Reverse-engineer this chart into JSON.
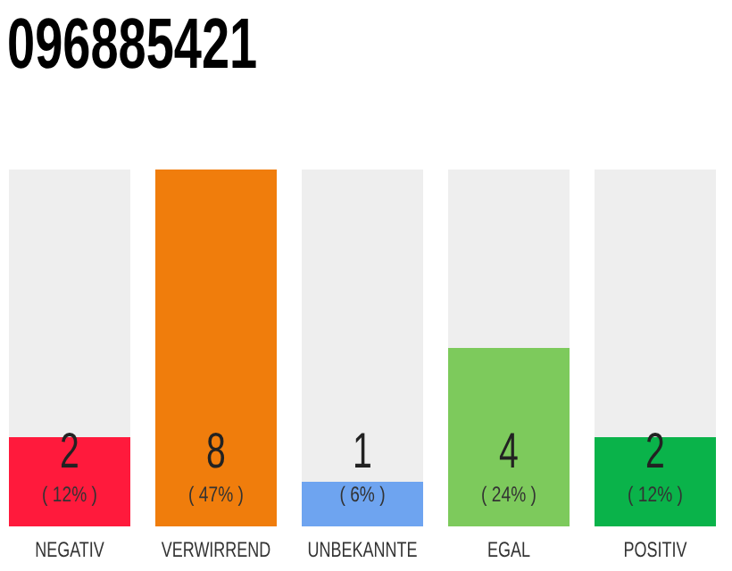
{
  "chart_data": {
    "type": "bar",
    "title": "096885421",
    "categories": [
      "NEGATIV",
      "VERWIRREND",
      "UNBEKANNTE",
      "EGAL",
      "POSITIV"
    ],
    "values": [
      2,
      8,
      1,
      4,
      2
    ],
    "colors": [
      "#ff1a3c",
      "#f07d0c",
      "#6ea4f0",
      "#7dca5c",
      "#0ab34a"
    ],
    "ylim": [
      0,
      8
    ],
    "data_labels": true,
    "tick_labels": "x",
    "annotations": [
      "( 12% )",
      "( 47% )",
      "( 6% )",
      "( 24% )",
      "( 12% )"
    ]
  }
}
